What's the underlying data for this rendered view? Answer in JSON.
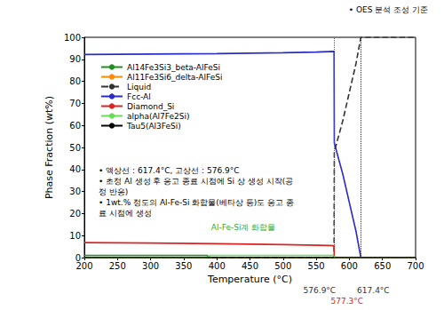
{
  "chart_data": {
    "type": "line",
    "xlabel": "Temperature (°C)",
    "ylabel": "Phase Fraction (wt%)",
    "xlim": [
      200,
      700
    ],
    "xticks": [
      200,
      250,
      300,
      350,
      400,
      450,
      500,
      550,
      600,
      650,
      700
    ],
    "ylim": [
      0,
      100
    ],
    "yticks": [
      0,
      10,
      20,
      30,
      40,
      50,
      60,
      70,
      80,
      90,
      100
    ],
    "grid": false,
    "legend": "upper left",
    "series": [
      {
        "name": "Al14Fe3Si3_beta-AlFeSi",
        "color": "#1f8f1f",
        "line_style": "solid",
        "x": [
          200,
          385,
          390,
          700
        ],
        "values": [
          1.0,
          1.0,
          0,
          0
        ]
      },
      {
        "name": "Al11Fe3Si6_delta-AlFeSi",
        "color": "#ff8c00",
        "line_style": "solid",
        "x": [
          200,
          700
        ],
        "values": [
          0,
          0
        ]
      },
      {
        "name": "Liquid",
        "color": "#333333",
        "line_style": "dashed",
        "x": [
          200,
          576.9,
          577.3,
          590,
          600,
          610,
          617.4,
          700
        ],
        "values": [
          0,
          0,
          48,
          62,
          75,
          88,
          100,
          100
        ]
      },
      {
        "name": "Fcc-Al",
        "color": "#2b2bc8",
        "line_style": "solid",
        "x": [
          200,
          300,
          400,
          500,
          550,
          576.9,
          577.3,
          590,
          600,
          610,
          617.4,
          700
        ],
        "values": [
          92.2,
          92.4,
          92.6,
          93.0,
          93.3,
          93.6,
          52,
          38,
          25,
          12,
          0,
          0
        ]
      },
      {
        "name": "Diamond_Si",
        "color": "#dd2222",
        "line_style": "solid",
        "x": [
          200,
          300,
          400,
          500,
          570,
          576.9,
          577.3,
          700
        ],
        "values": [
          6.8,
          6.6,
          6.3,
          5.9,
          5.5,
          5.4,
          0,
          0
        ]
      },
      {
        "name": "alpha(Al7Fe2Si)",
        "color": "#66dd55",
        "line_style": "solid",
        "x": [
          200,
          385,
          390,
          576.9,
          577.3,
          700
        ],
        "values": [
          0,
          0,
          1.0,
          1.0,
          0,
          0
        ]
      },
      {
        "name": "Tau5(Al3FeSi)",
        "color": "#000000",
        "line_style": "solid",
        "x": [
          200,
          700
        ],
        "values": [
          0,
          0
        ]
      }
    ],
    "header_note": "• OES 분석 조성 기준",
    "notes": [
      "• 액상선 : 617.4°C, 고상선 : 576.9°C",
      "• 초정 Al 생성 후 응고 종료 시점에 Si 상 생성 시작(공정 반응)",
      "• 1wt.% 정도의 Al-Fe-Si 화합물(베타상 등)도 응고 종료 시점에 생성"
    ],
    "annotations": [
      {
        "text": "Al-Fe-Si계 화합물",
        "x": 440,
        "y": 12,
        "color": "#33aa33"
      }
    ],
    "markers": [
      {
        "x": 576.9,
        "label": "576.9°C",
        "color": "#333333"
      },
      {
        "x": 577.3,
        "label": "577.3°C",
        "color": "#dd2222"
      },
      {
        "x": 617.4,
        "label": "617.4°C",
        "color": "#333333"
      }
    ]
  }
}
